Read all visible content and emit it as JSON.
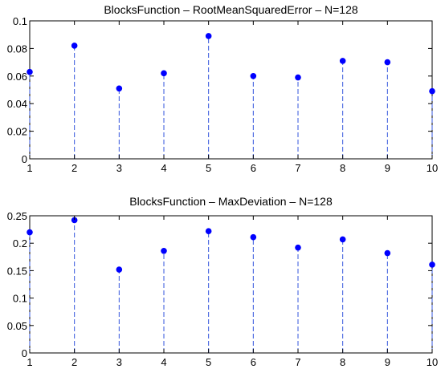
{
  "chart_data": [
    {
      "type": "stem",
      "title": "BlocksFunction – RootMeanSquaredError – N=128",
      "xlabel": "",
      "ylabel": "",
      "xlim": [
        1,
        10
      ],
      "ylim": [
        0,
        0.1
      ],
      "xticks": [
        "1",
        "2",
        "3",
        "4",
        "5",
        "6",
        "7",
        "8",
        "9",
        "10"
      ],
      "yticks": [
        "0",
        "0.02",
        "0.04",
        "0.06",
        "0.08",
        "0.1"
      ],
      "x": [
        1,
        2,
        3,
        4,
        5,
        6,
        7,
        8,
        9,
        10
      ],
      "y": [
        0.063,
        0.082,
        0.051,
        0.062,
        0.089,
        0.06,
        0.059,
        0.071,
        0.07,
        0.049
      ],
      "marker_color": "#0000ff",
      "stem_color": "#3355dd",
      "grid": false
    },
    {
      "type": "stem",
      "title": "BlocksFunction – MaxDeviation – N=128",
      "xlabel": "",
      "ylabel": "",
      "xlim": [
        1,
        10
      ],
      "ylim": [
        0,
        0.25
      ],
      "xticks": [
        "1",
        "2",
        "3",
        "4",
        "5",
        "6",
        "7",
        "8",
        "9",
        "10"
      ],
      "yticks": [
        "0",
        "0.05",
        "0.1",
        "0.15",
        "0.2",
        "0.25"
      ],
      "x": [
        1,
        2,
        3,
        4,
        5,
        6,
        7,
        8,
        9,
        10
      ],
      "y": [
        0.22,
        0.242,
        0.152,
        0.186,
        0.222,
        0.211,
        0.192,
        0.207,
        0.182,
        0.161
      ],
      "marker_color": "#0000ff",
      "stem_color": "#3355dd",
      "grid": false
    }
  ]
}
